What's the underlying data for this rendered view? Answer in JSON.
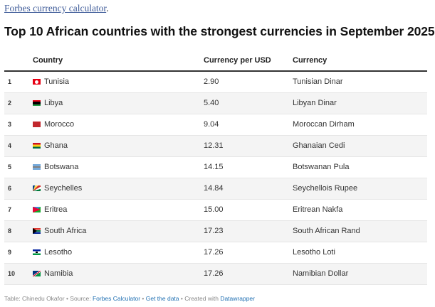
{
  "header": {
    "link_text": "Forbes currency calculator",
    "link_trailing": "."
  },
  "title": "Top 10 African countries with the strongest currencies in September 2025",
  "table": {
    "columns": {
      "rank": "",
      "country": "Country",
      "rate": "Currency per USD",
      "currency": "Currency"
    },
    "rows": [
      {
        "rank": "1",
        "flag": "tunisia-flag-icon",
        "country": "Tunisia",
        "rate": "2.90",
        "currency": "Tunisian Dinar"
      },
      {
        "rank": "2",
        "flag": "libya-flag-icon",
        "country": "Libya",
        "rate": "5.40",
        "currency": "Libyan Dinar"
      },
      {
        "rank": "3",
        "flag": "morocco-flag-icon",
        "country": "Morocco",
        "rate": "9.04",
        "currency": "Moroccan Dirham"
      },
      {
        "rank": "4",
        "flag": "ghana-flag-icon",
        "country": "Ghana",
        "rate": "12.31",
        "currency": "Ghanaian Cedi"
      },
      {
        "rank": "5",
        "flag": "botswana-flag-icon",
        "country": "Botswana",
        "rate": "14.15",
        "currency": "Botswanan Pula"
      },
      {
        "rank": "6",
        "flag": "seychelles-flag-icon",
        "country": "Seychelles",
        "rate": "14.84",
        "currency": "Seychellois Rupee"
      },
      {
        "rank": "7",
        "flag": "eritrea-flag-icon",
        "country": "Eritrea",
        "rate": "15.00",
        "currency": "Eritrean Nakfa"
      },
      {
        "rank": "8",
        "flag": "south-africa-flag-icon",
        "country": "South Africa",
        "rate": "17.23",
        "currency": "South African Rand"
      },
      {
        "rank": "9",
        "flag": "lesotho-flag-icon",
        "country": "Lesotho",
        "rate": "17.26",
        "currency": "Lesotho Loti"
      },
      {
        "rank": "10",
        "flag": "namibia-flag-icon",
        "country": "Namibia",
        "rate": "17.26",
        "currency": "Namibian Dollar"
      }
    ]
  },
  "footer": {
    "table_credit": "Table: Chinedu Okafor",
    "source_label": " • Source: ",
    "source_link": "Forbes Calculator",
    "sep1": " • ",
    "data_link": "Get the data",
    "created_label": " • Created with ",
    "created_link": "Datawrapper"
  }
}
